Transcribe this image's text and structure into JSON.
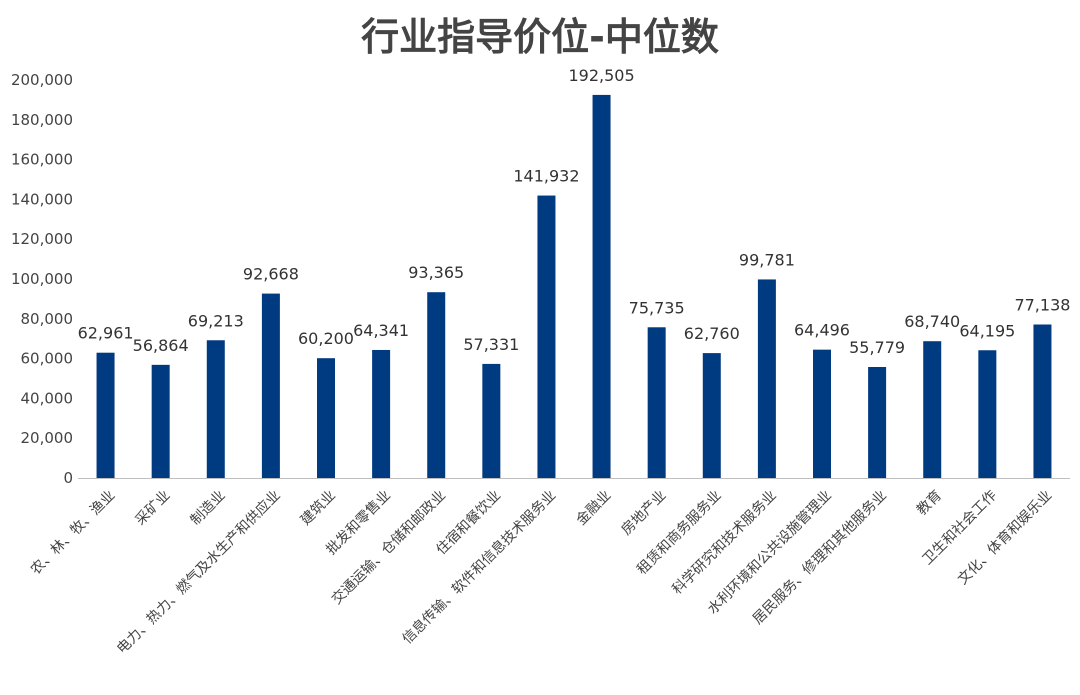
{
  "chart_data": {
    "type": "bar",
    "title": "行业指导价位-中位数",
    "xlabel": "",
    "ylabel": "",
    "ylim": [
      0,
      200000
    ],
    "yticks": [
      "0",
      "20,000",
      "40,000",
      "60,000",
      "80,000",
      "100,000",
      "120,000",
      "140,000",
      "160,000",
      "180,000",
      "200,000"
    ],
    "grid": false,
    "legend": "none",
    "bar_color": "#003a80",
    "categories": [
      "农、林、牧、渔业",
      "采矿业",
      "制造业",
      "电力、热力、燃气及水生产和供应业",
      "建筑业",
      "批发和零售业",
      "交通运输、仓储和邮政业",
      "住宿和餐饮业",
      "信息传输、软件和信息技术服务业",
      "金融业",
      "房地产业",
      "租赁和商务服务业",
      "科学研究和技术服务业",
      "水利环境和公共设施管理业",
      "居民服务、修理和其他服务业",
      "教育",
      "卫生和社会工作",
      "文化、体育和娱乐业"
    ],
    "values": [
      62961,
      56864,
      69213,
      92668,
      60200,
      64341,
      93365,
      57331,
      141932,
      192505,
      75735,
      62760,
      99781,
      64496,
      55779,
      68740,
      64195,
      77138
    ],
    "data_labels": [
      "62,961",
      "56,864",
      "69,213",
      "92,668",
      "60,200",
      "64,341",
      "93,365",
      "57,331",
      "141,932",
      "192,505",
      "75,735",
      "62,760",
      "99,781",
      "64,496",
      "55,779",
      "68,740",
      "64,195",
      "77,138"
    ]
  }
}
